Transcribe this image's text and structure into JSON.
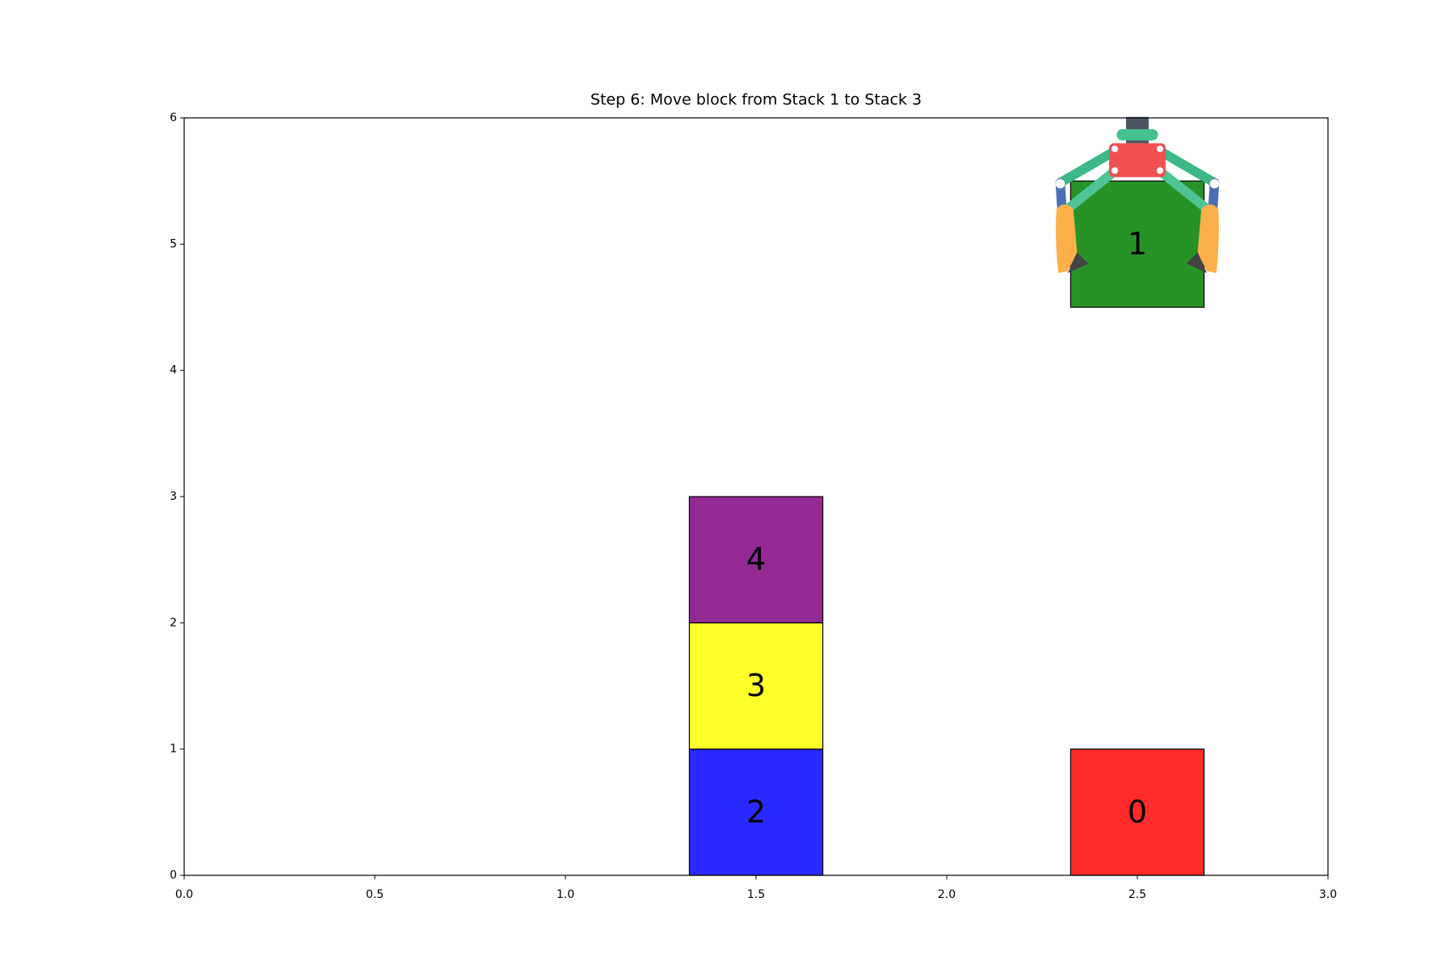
{
  "chart_data": {
    "type": "blocks",
    "title": "Step 6: Move block from Stack 1 to Stack 3",
    "blocks": [
      {
        "name": "0",
        "color": "#ff2a2a",
        "x": 2.5,
        "y": 0
      },
      {
        "name": "1",
        "color": "#279327",
        "x": 2.5,
        "y": 4.5
      },
      {
        "name": "2",
        "color": "#2a2aff",
        "x": 1.5,
        "y": 0
      },
      {
        "name": "3",
        "color": "#ffff2a",
        "x": 1.5,
        "y": 1
      },
      {
        "name": "4",
        "color": "#932a93",
        "x": 1.5,
        "y": 2
      }
    ],
    "xlim": [
      0,
      3
    ],
    "ylim": [
      0,
      6
    ],
    "xticks": [
      {
        "value": 0,
        "label": "0.0"
      },
      {
        "value": 0.5,
        "label": "0.5"
      },
      {
        "value": 1,
        "label": "1.0"
      },
      {
        "value": 1.5,
        "label": "1.5"
      },
      {
        "value": 2,
        "label": "2.0"
      },
      {
        "value": 2.5,
        "label": "2.5"
      },
      {
        "value": 3,
        "label": "3.0"
      }
    ],
    "yticks": [
      0,
      1,
      2,
      3,
      4,
      5,
      6
    ]
  }
}
